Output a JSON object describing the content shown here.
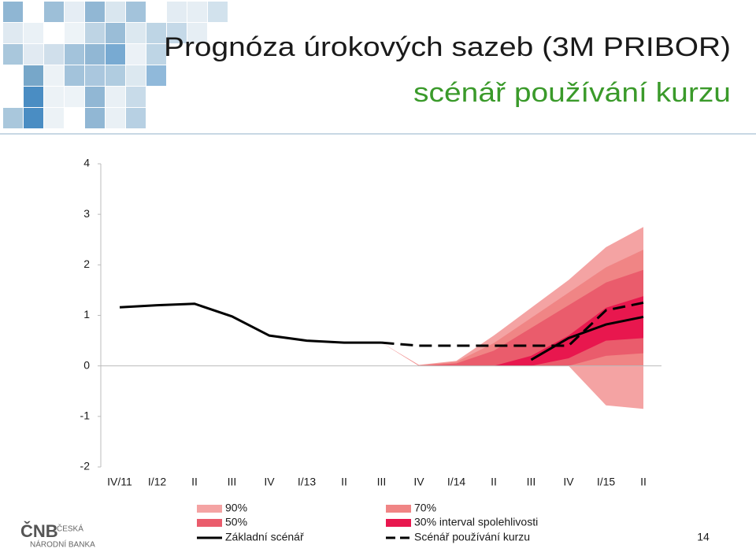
{
  "header": {
    "title": "Prognóza úrokových sazeb (3M PRIBOR)",
    "subtitle": "scénář používání kurzu"
  },
  "chart_data": {
    "type": "fan",
    "categories": [
      "IV/11",
      "I/12",
      "II",
      "III",
      "IV",
      "I/13",
      "II",
      "III",
      "IV",
      "I/14",
      "II",
      "III",
      "IV",
      "I/15",
      "II"
    ],
    "ylim": [
      -2,
      4
    ],
    "yticks": [
      -2,
      -1,
      0,
      1,
      2,
      3,
      4
    ],
    "bands": [
      {
        "name": "90%",
        "color": "#f4a3a3",
        "upper": [
          null,
          null,
          null,
          null,
          null,
          null,
          null,
          0.46,
          0.02,
          0.1,
          0.6,
          1.15,
          1.7,
          2.35,
          2.75
        ],
        "lower": [
          null,
          null,
          null,
          null,
          null,
          null,
          null,
          0.46,
          0,
          0,
          0,
          0,
          0,
          -0.78,
          -0.85
        ]
      },
      {
        "name": "70%",
        "color": "#f08585",
        "upper": [
          null,
          null,
          null,
          null,
          null,
          null,
          null,
          0.46,
          0.01,
          0.08,
          0.45,
          0.95,
          1.45,
          1.95,
          2.3
        ],
        "lower": [
          null,
          null,
          null,
          null,
          null,
          null,
          null,
          0.46,
          0,
          0,
          0,
          0,
          0,
          0,
          0
        ]
      },
      {
        "name": "50%",
        "color": "#ea5c6c",
        "upper": [
          null,
          null,
          null,
          null,
          null,
          null,
          null,
          0.46,
          0,
          0.05,
          0.3,
          0.75,
          1.2,
          1.65,
          1.9
        ],
        "lower": [
          null,
          null,
          null,
          null,
          null,
          null,
          null,
          0.46,
          0,
          0,
          0,
          0,
          0,
          0.2,
          0.25
        ]
      },
      {
        "name": "30% interval spolehlivosti",
        "color": "#e8174e",
        "upper": [
          null,
          null,
          null,
          null,
          null,
          null,
          null,
          null,
          null,
          null,
          0,
          0.2,
          0.6,
          1.15,
          1.38
        ],
        "lower": [
          null,
          null,
          null,
          null,
          null,
          null,
          null,
          null,
          null,
          null,
          0,
          0,
          0.15,
          0.5,
          0.55
        ]
      }
    ],
    "series": [
      {
        "name": "Základní scénář",
        "color": "#000000",
        "dashed": false,
        "values": [
          1.16,
          1.2,
          1.23,
          0.98,
          0.6,
          0.5,
          0.46,
          0.46,
          null,
          null,
          null,
          0.12,
          0.55,
          0.82,
          0.97
        ]
      },
      {
        "name": "Scénář používání kurzu",
        "color": "#000000",
        "dashed": true,
        "values": [
          null,
          null,
          null,
          null,
          null,
          null,
          null,
          0.46,
          0.4,
          0.4,
          0.4,
          0.4,
          0.4,
          1.1,
          1.25
        ]
      }
    ]
  },
  "footer": {
    "logo_mark": "ČNB",
    "logo_line1": "ČESKÁ",
    "logo_line2": "NÁRODNÍ BANKA",
    "page_number": "14"
  }
}
